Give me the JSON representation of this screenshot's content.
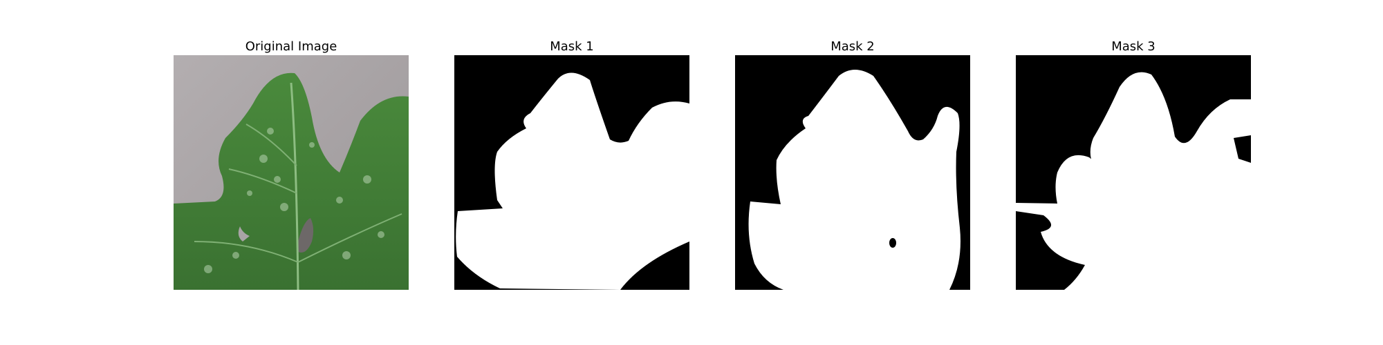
{
  "panels": [
    {
      "title": "Original Image"
    },
    {
      "title": "Mask 1"
    },
    {
      "title": "Mask 2"
    },
    {
      "title": "Mask 3"
    }
  ],
  "colors": {
    "background": "#ffffff",
    "mask_foreground": "#ffffff",
    "mask_background": "#000000",
    "leaf_green": "#3f7a35",
    "backdrop_gray": "#a9a4a6"
  }
}
